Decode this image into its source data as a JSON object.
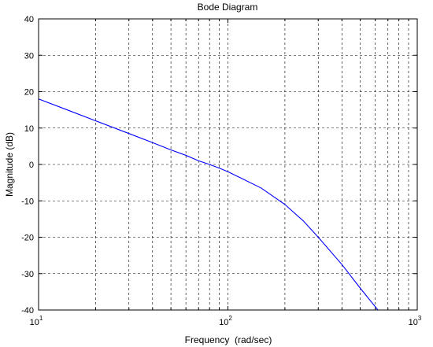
{
  "chart_data": {
    "type": "line",
    "title": "Bode Diagram",
    "xlabel": "Frequency  (rad/sec)",
    "ylabel": "Magnitude (dB)",
    "xscale": "log",
    "xlim": [
      10,
      1000
    ],
    "ylim": [
      -40,
      40
    ],
    "grid": true,
    "grid_style": "dashed",
    "x_ticks": [
      {
        "value": 10,
        "base": "10",
        "exp": "1"
      },
      {
        "value": 100,
        "base": "10",
        "exp": "2"
      },
      {
        "value": 1000,
        "base": "10",
        "exp": "3"
      }
    ],
    "y_ticks": [
      "-40",
      "-30",
      "-20",
      "-10",
      "0",
      "10",
      "20",
      "30",
      "40"
    ],
    "series": [
      {
        "color": "#0000ff",
        "x": [
          10,
          15,
          20,
          30,
          40,
          50,
          60,
          70,
          80,
          90,
          100,
          120,
          150,
          200,
          250,
          300,
          400,
          500,
          620
        ],
        "y": [
          18,
          14.5,
          12,
          8.5,
          6,
          4,
          2.5,
          1,
          0,
          -1,
          -2,
          -4,
          -6.5,
          -11,
          -15.5,
          -20,
          -27.5,
          -34,
          -40
        ]
      }
    ]
  }
}
